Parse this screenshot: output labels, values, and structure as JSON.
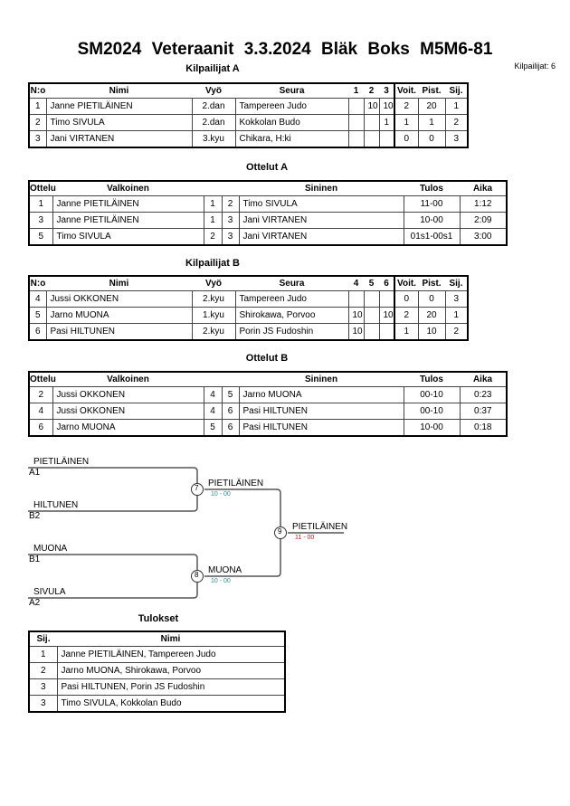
{
  "header": {
    "title": "SM2024  Veteraanit  3.3.2024  Bläk Boks   M5M6-81",
    "count": "Kilpailijat: 6"
  },
  "pool_a": {
    "title": "Kilpailijat A",
    "headers": [
      "N:o",
      "Nimi",
      "Vyö",
      "Seura",
      "1",
      "2",
      "3",
      "Voit.",
      "Pist.",
      "Sij."
    ],
    "rows": [
      [
        "1",
        "Janne PIETILÄINEN",
        "2.dan",
        "Tampereen Judo",
        "",
        "10",
        "10",
        "2",
        "20",
        "1"
      ],
      [
        "2",
        "Timo SIVULA",
        "2.dan",
        "Kokkolan Budo",
        "",
        "",
        "1",
        "1",
        "1",
        "2"
      ],
      [
        "3",
        "Jani VIRTANEN",
        "3.kyu",
        "Chikara, H:ki",
        "",
        "",
        "",
        "0",
        "0",
        "3"
      ]
    ]
  },
  "matches_a": {
    "title": "Ottelut A",
    "headers": [
      "Ottelu",
      "Valkoinen",
      "",
      "",
      "Sininen",
      "Tulos",
      "Aika"
    ],
    "rows": [
      [
        "1",
        "Janne PIETILÄINEN",
        "1",
        "2",
        "Timo SIVULA",
        "11-00",
        "1:12"
      ],
      [
        "3",
        "Janne PIETILÄINEN",
        "1",
        "3",
        "Jani VIRTANEN",
        "10-00",
        "2:09"
      ],
      [
        "5",
        "Timo SIVULA",
        "2",
        "3",
        "Jani VIRTANEN",
        "01s1-00s1",
        "3:00"
      ]
    ]
  },
  "pool_b": {
    "title": "Kilpailijat B",
    "headers": [
      "N:o",
      "Nimi",
      "Vyö",
      "Seura",
      "4",
      "5",
      "6",
      "Voit.",
      "Pist.",
      "Sij."
    ],
    "rows": [
      [
        "4",
        "Jussi OKKONEN",
        "2.kyu",
        "Tampereen Judo",
        "",
        "",
        "",
        "0",
        "0",
        "3"
      ],
      [
        "5",
        "Jarno MUONA",
        "1.kyu",
        "Shirokawa, Porvoo",
        "10",
        "",
        "10",
        "2",
        "20",
        "1"
      ],
      [
        "6",
        "Pasi HILTUNEN",
        "2.kyu",
        "Porin JS Fudoshin",
        "10",
        "",
        "",
        "1",
        "10",
        "2"
      ]
    ]
  },
  "matches_b": {
    "title": "Ottelut B",
    "headers": [
      "Ottelu",
      "Valkoinen",
      "",
      "",
      "Sininen",
      "Tulos",
      "Aika"
    ],
    "rows": [
      [
        "2",
        "Jussi OKKONEN",
        "4",
        "5",
        "Jarno MUONA",
        "00-10",
        "0:23"
      ],
      [
        "4",
        "Jussi OKKONEN",
        "4",
        "6",
        "Pasi HILTUNEN",
        "00-10",
        "0:37"
      ],
      [
        "6",
        "Jarno MUONA",
        "5",
        "6",
        "Pasi HILTUNEN",
        "10-00",
        "0:18"
      ]
    ]
  },
  "bracket": {
    "entries": [
      {
        "name": "PIETILÄINEN",
        "seed": "A1"
      },
      {
        "name": "HILTUNEN",
        "seed": "B2"
      },
      {
        "name": "MUONA",
        "seed": "B1"
      },
      {
        "name": "SIVULA",
        "seed": "A2"
      }
    ],
    "semis": [
      {
        "match": "7",
        "winner": "PIETILÄINEN",
        "score": "10 - 00"
      },
      {
        "match": "8",
        "winner": "MUONA",
        "score": "10 - 00"
      }
    ],
    "final": {
      "match": "9",
      "winner": "PIETILÄINEN",
      "score": "11 - 00"
    },
    "colors": {
      "semi_score": "#2a8aa0",
      "final_score": "#c02020"
    }
  },
  "results": {
    "title": "Tulokset",
    "headers": [
      "Sij.",
      "Nimi"
    ],
    "rows": [
      [
        "1",
        "Janne PIETILÄINEN, Tampereen Judo"
      ],
      [
        "2",
        "Jarno MUONA, Shirokawa, Porvoo"
      ],
      [
        "3",
        "Pasi HILTUNEN, Porin JS Fudoshin"
      ],
      [
        "3",
        "Timo SIVULA, Kokkolan Budo"
      ]
    ]
  }
}
